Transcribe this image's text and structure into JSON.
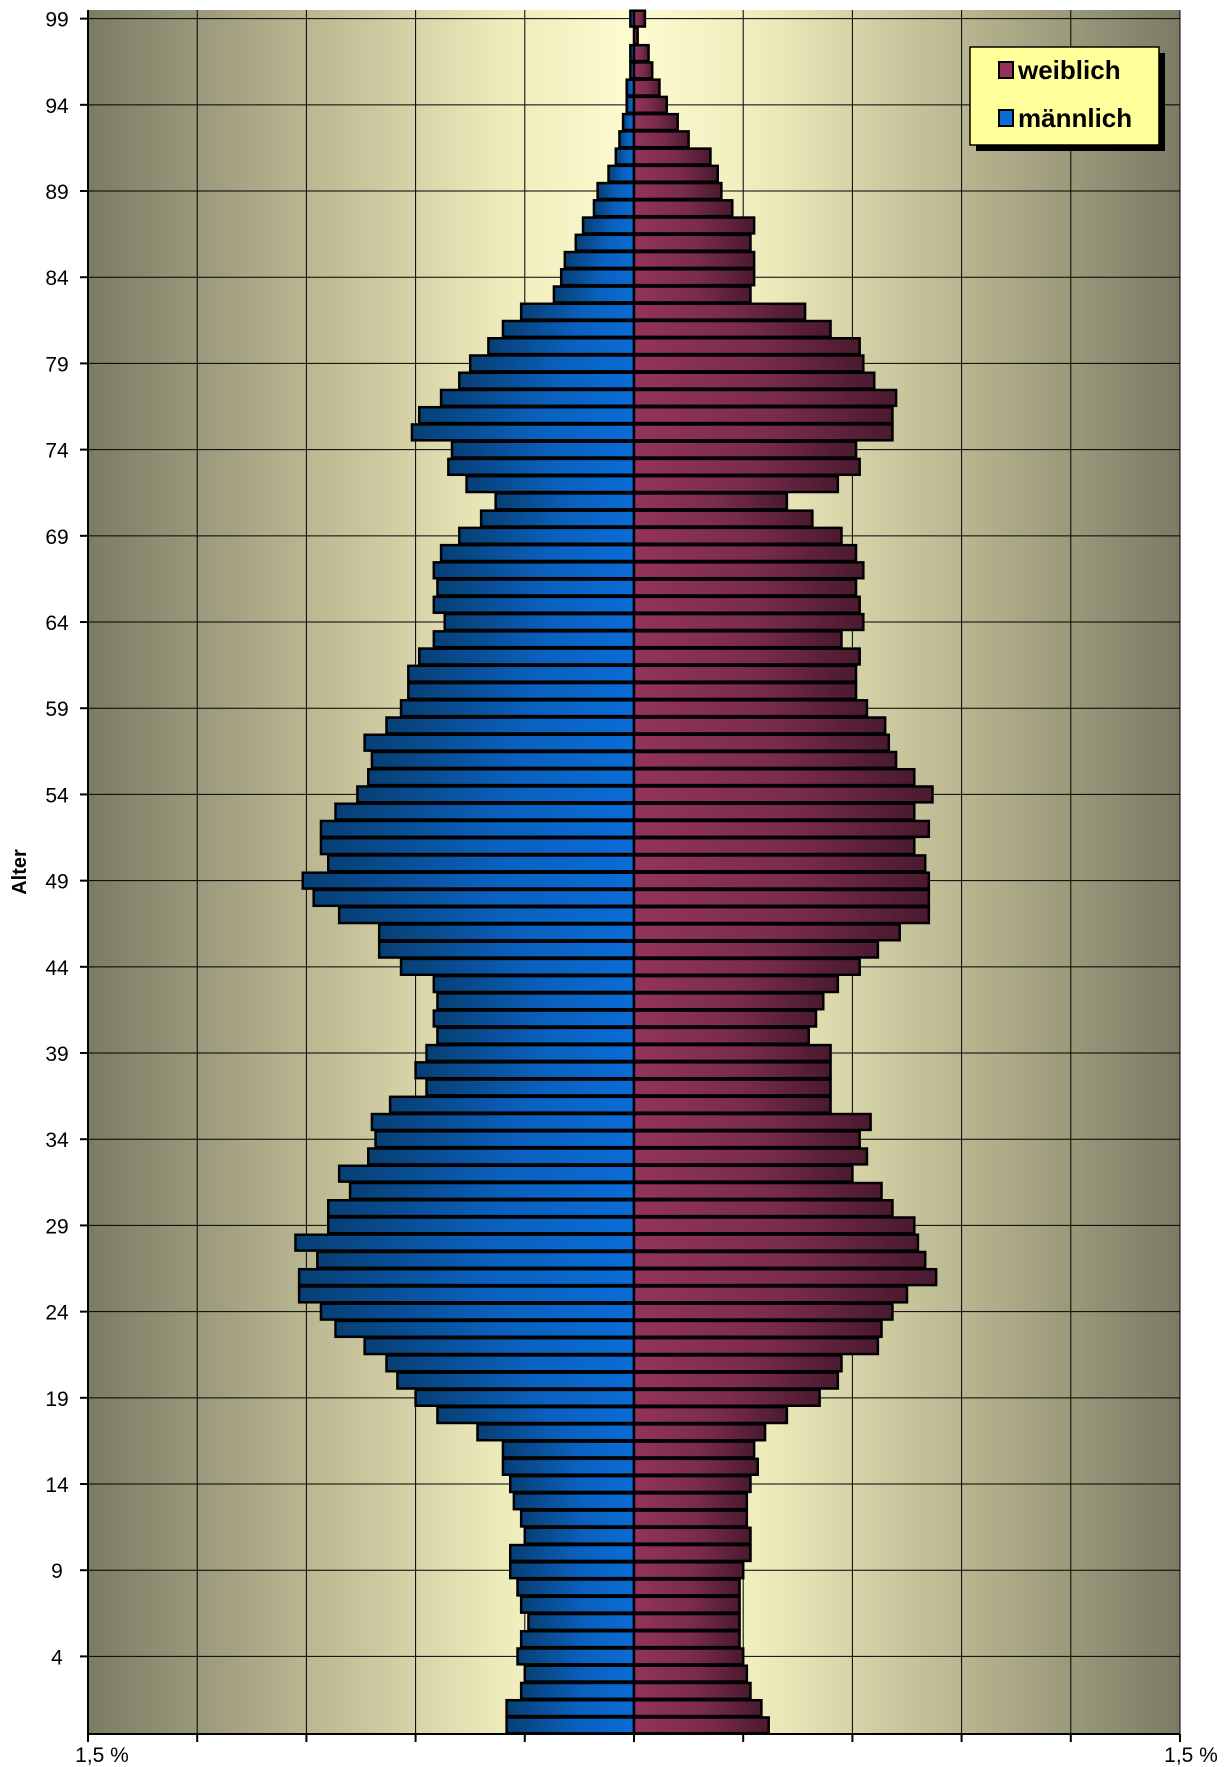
{
  "chart_data": {
    "type": "bar",
    "orientation": "horizontal-population-pyramid",
    "ylabel": "Alter",
    "x_axis_labels": [
      "1,5 %",
      "1,5 %"
    ],
    "xlim": [
      -1.5,
      1.5
    ],
    "y_tick_labels": [
      "99",
      "94",
      "89",
      "84",
      "79",
      "74",
      "69",
      "64",
      "59",
      "54",
      "49",
      "44",
      "39",
      "34",
      "29",
      "24",
      "19",
      "14",
      "9",
      "4"
    ],
    "ages": [
      0,
      1,
      2,
      3,
      4,
      5,
      6,
      7,
      8,
      9,
      10,
      11,
      12,
      13,
      14,
      15,
      16,
      17,
      18,
      19,
      20,
      21,
      22,
      23,
      24,
      25,
      26,
      27,
      28,
      29,
      30,
      31,
      32,
      33,
      34,
      35,
      36,
      37,
      38,
      39,
      40,
      41,
      42,
      43,
      44,
      45,
      46,
      47,
      48,
      49,
      50,
      51,
      52,
      53,
      54,
      55,
      56,
      57,
      58,
      59,
      60,
      61,
      62,
      63,
      64,
      65,
      66,
      67,
      68,
      69,
      70,
      71,
      72,
      73,
      74,
      75,
      76,
      77,
      78,
      79,
      80,
      81,
      82,
      83,
      84,
      85,
      86,
      87,
      88,
      89,
      90,
      91,
      92,
      93,
      94,
      95,
      96,
      97,
      98,
      99
    ],
    "legend": {
      "position": "top-right",
      "entries": [
        "weiblich",
        "männlich"
      ]
    },
    "grid": true,
    "series": [
      {
        "name": "männlich",
        "color": "#0a6cd6",
        "values": [
          0.35,
          0.35,
          0.31,
          0.3,
          0.32,
          0.31,
          0.29,
          0.31,
          0.32,
          0.34,
          0.34,
          0.3,
          0.31,
          0.33,
          0.34,
          0.36,
          0.36,
          0.43,
          0.54,
          0.6,
          0.65,
          0.68,
          0.74,
          0.82,
          0.86,
          0.92,
          0.92,
          0.87,
          0.93,
          0.84,
          0.84,
          0.78,
          0.81,
          0.73,
          0.71,
          0.72,
          0.67,
          0.57,
          0.6,
          0.57,
          0.54,
          0.55,
          0.54,
          0.55,
          0.64,
          0.7,
          0.7,
          0.81,
          0.88,
          0.91,
          0.84,
          0.86,
          0.86,
          0.82,
          0.76,
          0.73,
          0.72,
          0.74,
          0.68,
          0.64,
          0.62,
          0.62,
          0.59,
          0.55,
          0.52,
          0.55,
          0.54,
          0.55,
          0.53,
          0.48,
          0.42,
          0.38,
          0.46,
          0.51,
          0.5,
          0.61,
          0.59,
          0.53,
          0.48,
          0.45,
          0.4,
          0.36,
          0.31,
          0.22,
          0.2,
          0.19,
          0.16,
          0.14,
          0.11,
          0.1,
          0.07,
          0.05,
          0.04,
          0.03,
          0.02,
          0.02,
          0.01,
          0.01,
          0.0,
          0.01
        ]
      },
      {
        "name": "weiblich",
        "color": "#93335c",
        "values": [
          0.37,
          0.35,
          0.32,
          0.31,
          0.3,
          0.29,
          0.29,
          0.29,
          0.29,
          0.3,
          0.32,
          0.32,
          0.31,
          0.31,
          0.32,
          0.34,
          0.33,
          0.36,
          0.42,
          0.51,
          0.56,
          0.57,
          0.67,
          0.68,
          0.71,
          0.75,
          0.83,
          0.8,
          0.78,
          0.77,
          0.71,
          0.68,
          0.6,
          0.64,
          0.62,
          0.65,
          0.54,
          0.54,
          0.54,
          0.54,
          0.48,
          0.5,
          0.52,
          0.56,
          0.62,
          0.67,
          0.73,
          0.81,
          0.81,
          0.81,
          0.8,
          0.77,
          0.81,
          0.77,
          0.82,
          0.77,
          0.72,
          0.7,
          0.69,
          0.64,
          0.61,
          0.61,
          0.62,
          0.57,
          0.63,
          0.62,
          0.61,
          0.63,
          0.61,
          0.57,
          0.49,
          0.42,
          0.56,
          0.62,
          0.61,
          0.71,
          0.71,
          0.72,
          0.66,
          0.63,
          0.62,
          0.54,
          0.47,
          0.32,
          0.33,
          0.33,
          0.32,
          0.33,
          0.27,
          0.24,
          0.23,
          0.21,
          0.15,
          0.12,
          0.09,
          0.07,
          0.05,
          0.04,
          0.01,
          0.03
        ]
      }
    ]
  }
}
